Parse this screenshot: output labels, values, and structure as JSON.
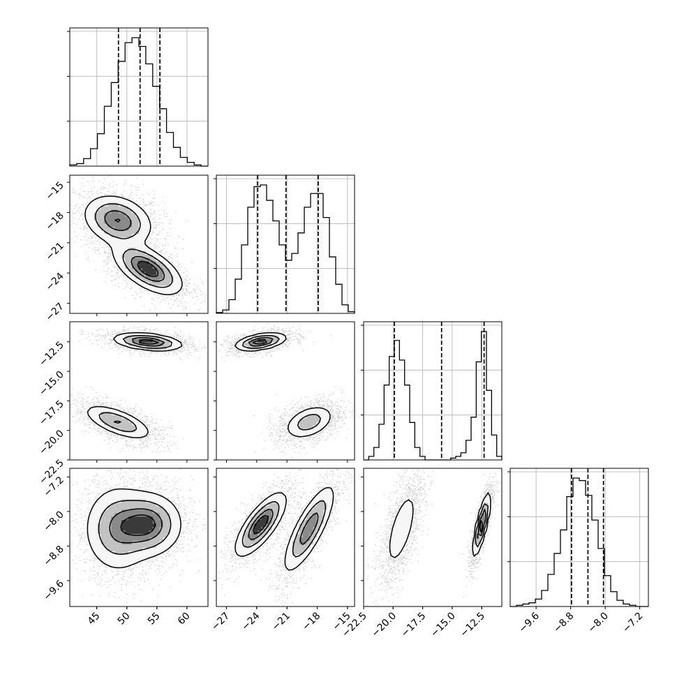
{
  "chart_data": {
    "type": "corner",
    "parameters": [
      {
        "ticks": [
          45,
          50,
          55,
          60
        ],
        "tick_labels": [
          "45",
          "50",
          "55",
          "60"
        ],
        "range": [
          40.5,
          63.5
        ],
        "quantiles": [
          48.6,
          52.2,
          55.5
        ]
      },
      {
        "ticks": [
          -27,
          -24,
          -21,
          -18,
          -15
        ],
        "tick_labels": [
          "−27",
          "−24",
          "−21",
          "−18",
          "−15"
        ],
        "range": [
          -28.0,
          -14.3
        ],
        "quantiles": [
          -23.9,
          -21.1,
          -17.9
        ]
      },
      {
        "ticks": [
          -22.5,
          -20.0,
          -17.5,
          -15.0,
          -12.5
        ],
        "tick_labels": [
          "−22.5",
          "−20.0",
          "−17.5",
          "−15.0",
          "−12.5"
        ],
        "range": [
          -22.5,
          -10.8
        ],
        "quantiles": [
          -19.9,
          -15.9,
          -12.3
        ]
      },
      {
        "ticks": [
          -9.6,
          -8.8,
          -8.0,
          -7.2
        ],
        "tick_labels": [
          "−9.6",
          "−8.8",
          "−8.0",
          "−7.2"
        ],
        "range": [
          -10.2,
          -7.0
        ],
        "quantiles": [
          -8.78,
          -8.4,
          -8.04
        ]
      }
    ],
    "histograms": [
      {
        "bin_range": [
          40.5,
          63.5
        ],
        "counts": [
          1,
          2,
          6,
          14,
          26,
          48,
          67,
          84,
          99,
          103,
          96,
          82,
          64,
          46,
          27,
          15,
          7,
          3,
          1,
          0
        ]
      },
      {
        "bin_range": [
          -28.0,
          -14.3
        ],
        "counts": [
          0.5,
          2,
          8,
          20,
          40,
          62,
          74,
          75,
          66,
          54,
          40,
          31,
          35,
          47,
          62,
          70,
          70,
          56,
          33,
          17,
          5,
          1
        ]
      },
      {
        "bin_range": [
          -22.5,
          -10.8
        ],
        "counts": [
          0,
          2,
          7,
          20,
          42,
          58,
          67,
          56,
          42,
          21,
          7,
          2,
          0,
          0,
          0,
          0,
          0,
          1,
          2,
          4,
          11,
          24,
          55,
          72,
          39,
          14,
          2
        ]
      },
      {
        "bin_range": [
          -10.2,
          -7.0
        ],
        "counts": [
          0,
          1,
          2,
          3,
          6,
          13,
          26,
          43,
          62,
          89,
          104,
          102,
          90,
          70,
          47,
          25,
          12,
          5,
          2,
          1,
          0,
          0
        ]
      }
    ],
    "modes": [
      {
        "mu": [
          48.5,
          -18.8,
          -19.3,
          -8.4
        ],
        "sd": [
          2.7,
          1.2,
          0.7,
          0.48
        ],
        "corr": [
          [
            1,
            -0.25,
            -0.65,
            0.0
          ],
          [
            -0.25,
            1,
            0.4,
            0.8
          ],
          [
            -0.65,
            0.4,
            1,
            0.65
          ],
          [
            0.0,
            0.8,
            0.65,
            1
          ]
        ]
      },
      {
        "mu": [
          53.5,
          -23.6,
          -12.5,
          -8.3
        ],
        "sd": [
          2.7,
          1.2,
          0.35,
          0.35
        ],
        "corr": [
          [
            1,
            -0.6,
            -0.35,
            0.0
          ],
          [
            -0.6,
            1,
            0.45,
            0.75
          ],
          [
            -0.35,
            0.45,
            1,
            0.8
          ],
          [
            0.0,
            0.75,
            0.8,
            1
          ]
        ]
      }
    ],
    "grid": true,
    "title": "",
    "xlabel": "",
    "ylabel": ""
  }
}
